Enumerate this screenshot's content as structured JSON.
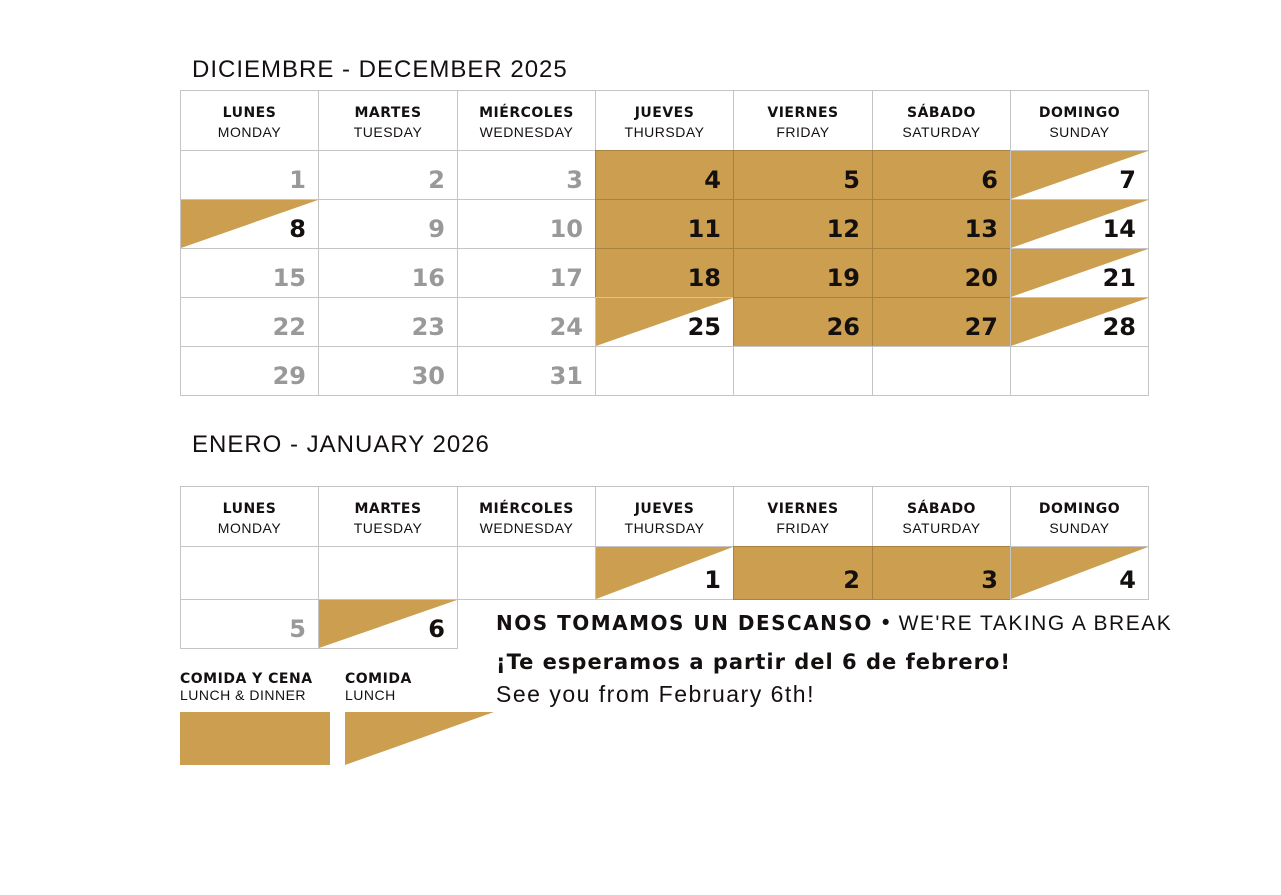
{
  "colors": {
    "gold": "#cc9f50",
    "closed_text": "#999999",
    "text": "#151010"
  },
  "weekdays": [
    {
      "es": "LUNES",
      "en": "MONDAY"
    },
    {
      "es": "MARTES",
      "en": "TUESDAY"
    },
    {
      "es": "MIÉRCOLES",
      "en": "WEDNESDAY"
    },
    {
      "es": "JUEVES",
      "en": "THURSDAY"
    },
    {
      "es": "VIERNES",
      "en": "FRIDAY"
    },
    {
      "es": "SÁBADO",
      "en": "SATURDAY"
    },
    {
      "es": "DOMINGO",
      "en": "SUNDAY"
    }
  ],
  "months": [
    {
      "title": "DICIEMBRE - DECEMBER 2025",
      "weeks": [
        [
          [
            "1",
            "closed"
          ],
          [
            "2",
            "closed"
          ],
          [
            "3",
            "closed"
          ],
          [
            "4",
            "full"
          ],
          [
            "5",
            "full"
          ],
          [
            "6",
            "full"
          ],
          [
            "7",
            "lunch"
          ]
        ],
        [
          [
            "8",
            "lunch"
          ],
          [
            "9",
            "closed"
          ],
          [
            "10",
            "closed"
          ],
          [
            "11",
            "full"
          ],
          [
            "12",
            "full"
          ],
          [
            "13",
            "full"
          ],
          [
            "14",
            "lunch"
          ]
        ],
        [
          [
            "15",
            "closed"
          ],
          [
            "16",
            "closed"
          ],
          [
            "17",
            "closed"
          ],
          [
            "18",
            "full"
          ],
          [
            "19",
            "full"
          ],
          [
            "20",
            "full"
          ],
          [
            "21",
            "lunch"
          ]
        ],
        [
          [
            "22",
            "closed"
          ],
          [
            "23",
            "closed"
          ],
          [
            "24",
            "closed"
          ],
          [
            "25",
            "lunch"
          ],
          [
            "26",
            "full"
          ],
          [
            "27",
            "full"
          ],
          [
            "28",
            "lunch"
          ]
        ],
        [
          [
            "29",
            "closed"
          ],
          [
            "30",
            "closed"
          ],
          [
            "31",
            "closed"
          ],
          [
            "",
            "empty"
          ],
          [
            "",
            "empty"
          ],
          [
            "",
            "empty"
          ],
          [
            "",
            "empty"
          ]
        ]
      ]
    },
    {
      "title": "ENERO - JANUARY 2026",
      "weeks": [
        [
          [
            "",
            "empty"
          ],
          [
            "",
            "empty"
          ],
          [
            "",
            "empty"
          ],
          [
            "1",
            "lunch"
          ],
          [
            "2",
            "full"
          ],
          [
            "3",
            "full"
          ],
          [
            "4",
            "lunch"
          ]
        ],
        [
          [
            "5",
            "closed"
          ],
          [
            "6",
            "lunch"
          ]
        ]
      ]
    }
  ],
  "legend": {
    "full": {
      "es": "COMIDA Y CENA",
      "en": "LUNCH & DINNER"
    },
    "lunch": {
      "es": "COMIDA",
      "en": "LUNCH"
    }
  },
  "message": {
    "headline_es": "NOS TOMAMOS UN DESCANSO",
    "separator": "•",
    "headline_en": "WE'RE TAKING A BREAK",
    "line_es": "¡Te esperamos a partir del 6 de febrero!",
    "line_en": "See you from February 6th!"
  }
}
